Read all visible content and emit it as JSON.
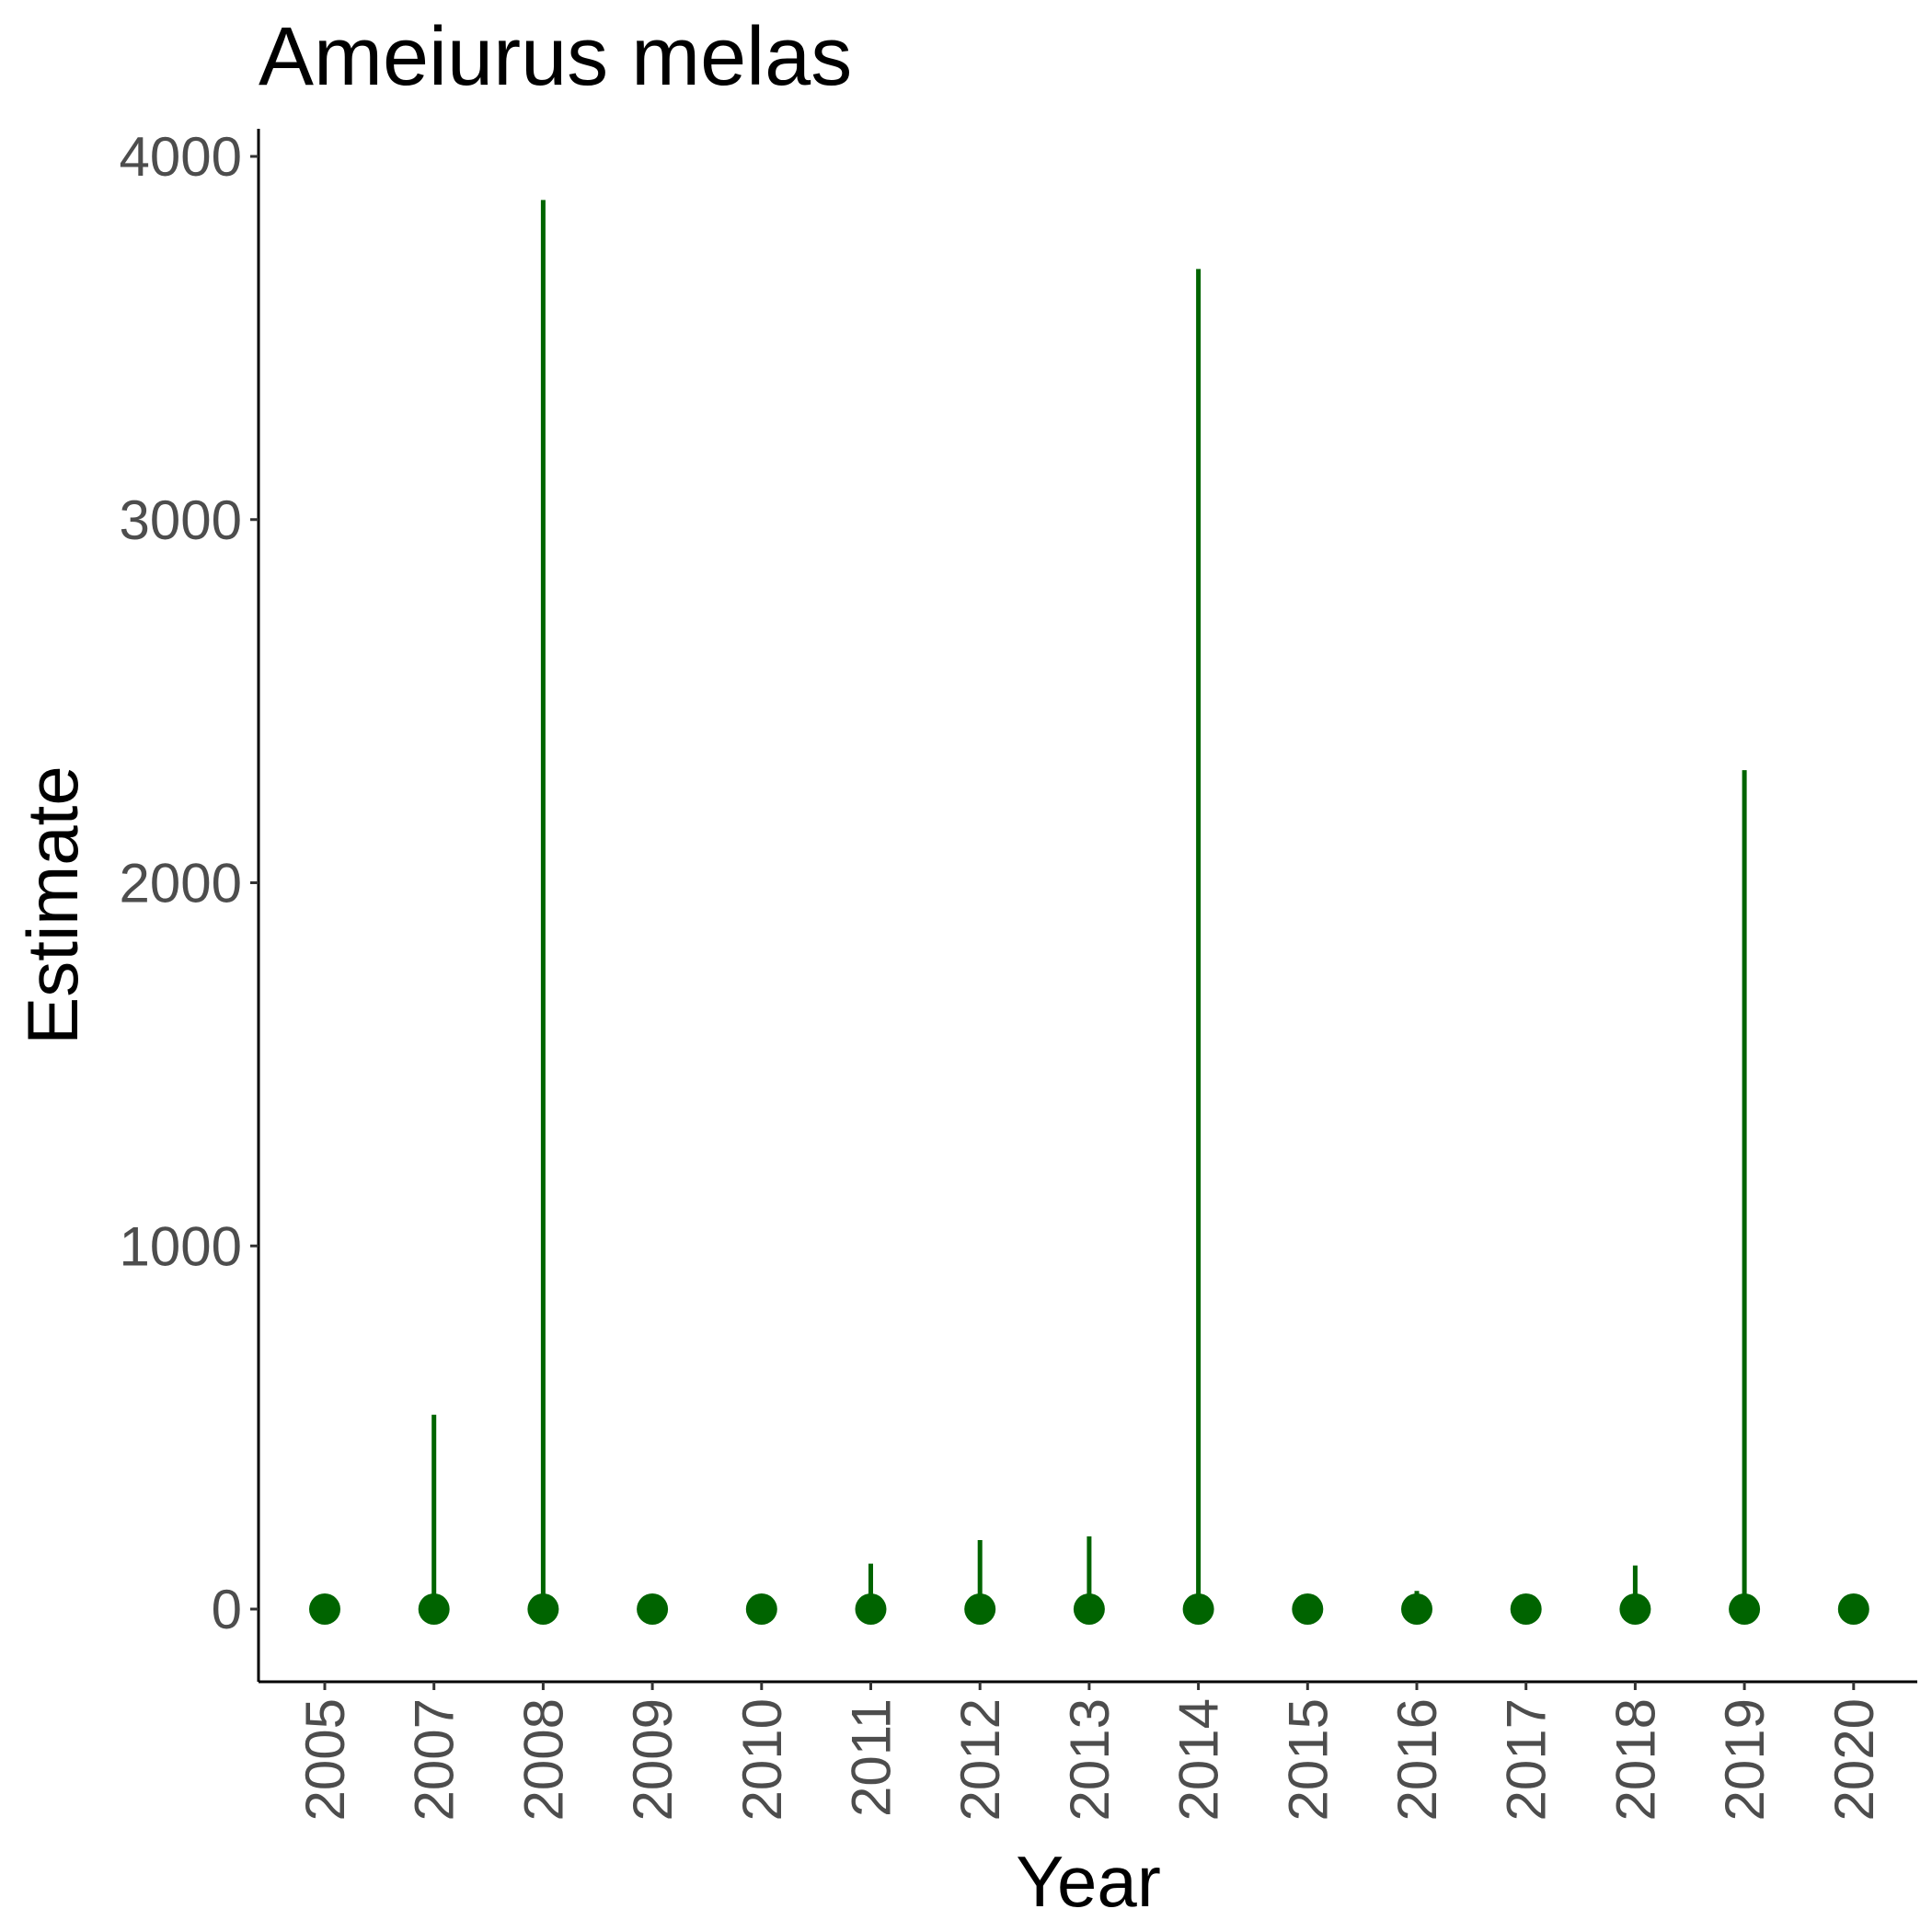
{
  "chart_data": {
    "type": "scatter",
    "title": "Ameiurus melas",
    "xlabel": "Year",
    "ylabel": "Estimate",
    "categories": [
      "2005",
      "2007",
      "2008",
      "2009",
      "2010",
      "2011",
      "2012",
      "2013",
      "2014",
      "2015",
      "2016",
      "2017",
      "2018",
      "2019",
      "2020"
    ],
    "series": [
      {
        "values": [
          0,
          0,
          0,
          0,
          0,
          0,
          0,
          0,
          0,
          0,
          0,
          0,
          0,
          0,
          0
        ],
        "upper": [
          0,
          535,
          3880,
          0,
          0,
          125,
          190,
          200,
          3690,
          0,
          50,
          0,
          120,
          2310,
          0
        ],
        "color": "#006400"
      }
    ],
    "ylim": [
      -195,
      4075
    ],
    "yticks": [
      0,
      1000,
      2000,
      3000,
      4000
    ],
    "ytick_labels": [
      "0",
      "1000",
      "2000",
      "3000",
      "4000"
    ],
    "grid": false,
    "legend": "none"
  }
}
